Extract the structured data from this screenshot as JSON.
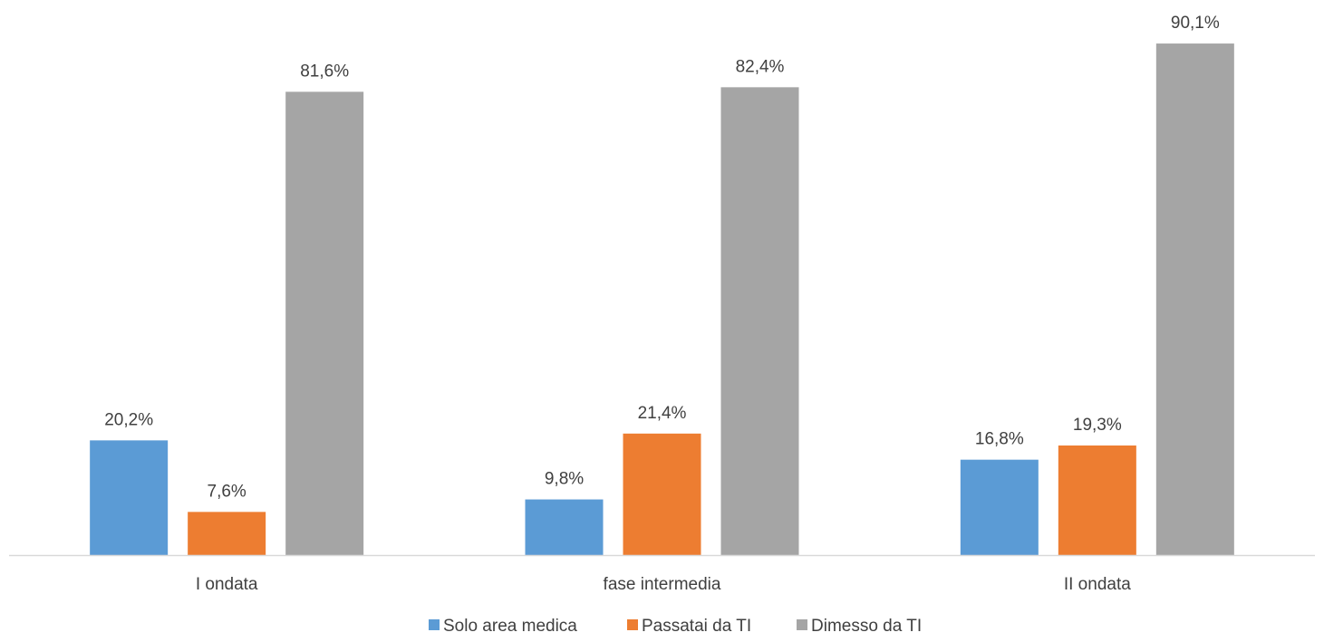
{
  "chart_data": {
    "type": "bar",
    "categories": [
      "I ondata",
      "fase intermedia",
      "II ondata"
    ],
    "series": [
      {
        "name": "Solo area medica",
        "values": [
          20.2,
          9.8,
          16.8
        ],
        "labels": [
          "20,2%",
          "9,8%",
          "16,8%"
        ],
        "color": "#5B9BD5"
      },
      {
        "name": "Passatai da TI",
        "values": [
          7.6,
          21.4,
          19.3
        ],
        "labels": [
          "7,6%",
          "21,4%",
          "19,3%"
        ],
        "color": "#ED7D31"
      },
      {
        "name": "Dimesso da TI",
        "values": [
          81.6,
          82.4,
          90.1
        ],
        "labels": [
          "81,6%",
          "82,4%",
          "90,1%"
        ],
        "color": "#A5A5A5"
      }
    ],
    "title": "",
    "xlabel": "",
    "ylabel": "",
    "ylim": [
      0,
      95
    ],
    "grid": false,
    "legend_position": "bottom",
    "axis_color": "#D9D9D9"
  }
}
